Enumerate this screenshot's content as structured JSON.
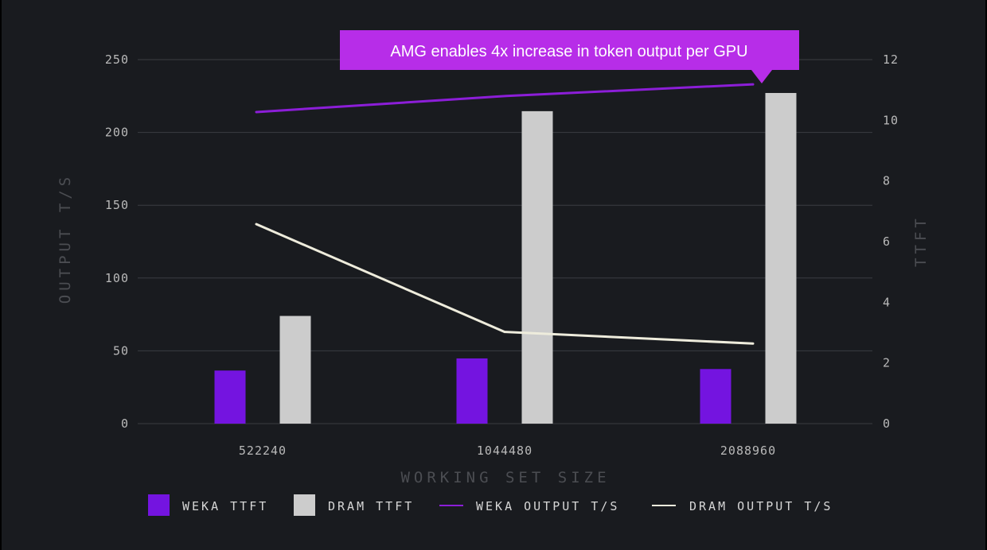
{
  "colors": {
    "background": "#191b1f",
    "grid": "#3a3c42",
    "weka": "#7414e0",
    "dram": "#cccccc",
    "weka_line": "#8c1ed8",
    "dram_line": "#eeecdc",
    "callout": "#b72de8"
  },
  "chart_data": {
    "type": "bar",
    "xlabel": "WORKING SET SIZE",
    "ylabel": "OUTPUT T/S",
    "y2label": "TTFT",
    "categories": [
      "522240",
      "1044480",
      "2088960"
    ],
    "ylim": [
      0,
      250
    ],
    "y2lim": [
      0,
      12
    ],
    "yticks": [
      "0",
      "50",
      "100",
      "150",
      "200",
      "250"
    ],
    "y2ticks": [
      "0",
      "2",
      "4",
      "6",
      "8",
      "10",
      "12"
    ],
    "grid": true,
    "legend_position": "bottom",
    "series": [
      {
        "name": "WEKA TTFT",
        "kind": "bar",
        "axis": "right",
        "values": [
          1.75,
          2.15,
          1.8
        ]
      },
      {
        "name": "DRAM TTFT",
        "kind": "bar",
        "axis": "right",
        "values": [
          3.55,
          10.3,
          10.9
        ]
      },
      {
        "name": "WEKA OUTPUT T/S",
        "kind": "line",
        "axis": "left",
        "values": [
          214,
          225,
          233
        ]
      },
      {
        "name": "DRAM OUTPUT T/S",
        "kind": "line",
        "axis": "left",
        "values": [
          137,
          63,
          55
        ]
      }
    ],
    "annotation": "AMG enables 4x increase in token output per GPU"
  }
}
